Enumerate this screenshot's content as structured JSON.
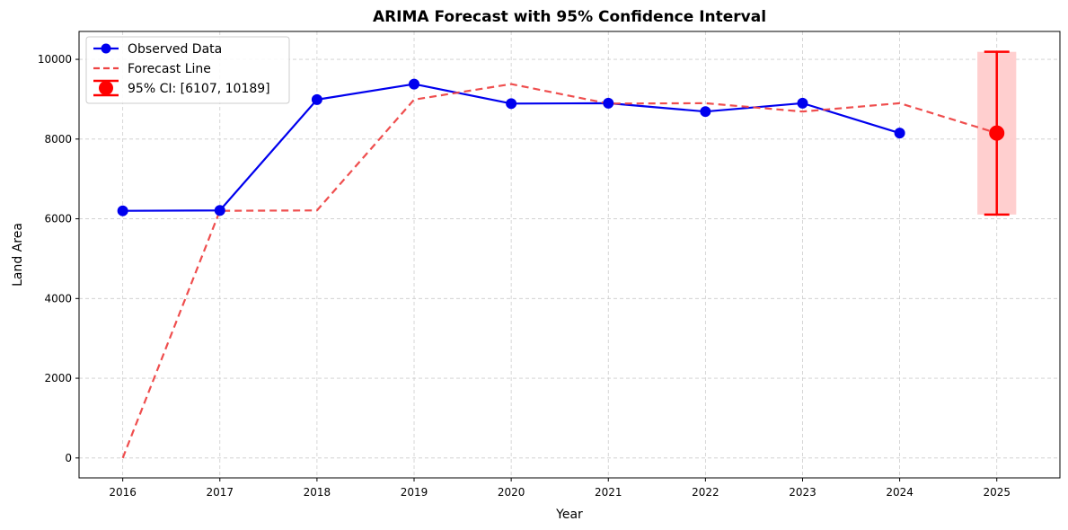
{
  "chart_data": {
    "type": "line",
    "title": "ARIMA Forecast with 95% Confidence Interval",
    "xlabel": "Year",
    "ylabel": "Land Area",
    "xlim": [
      2015.55,
      2025.65
    ],
    "ylim": [
      -500,
      10700
    ],
    "xticks": [
      "2016",
      "2017",
      "2018",
      "2019",
      "2020",
      "2021",
      "2022",
      "2023",
      "2024",
      "2025"
    ],
    "yticks": [
      "0",
      "2000",
      "4000",
      "6000",
      "8000",
      "10000"
    ],
    "grid": true,
    "legend_position": "top-left",
    "series": [
      {
        "name": "Observed Data",
        "style": "solid-marker",
        "color": "#0000ee",
        "x": [
          2016,
          2017,
          2018,
          2019,
          2020,
          2021,
          2022,
          2023,
          2024
        ],
        "y": [
          6200,
          6210,
          8990,
          9380,
          8890,
          8900,
          8690,
          8900,
          8150
        ]
      },
      {
        "name": "Forecast Line",
        "style": "dashed",
        "color": "#ee4444",
        "x": [
          2016,
          2017,
          2018,
          2019,
          2020,
          2021,
          2022,
          2023,
          2024,
          2025
        ],
        "y": [
          0,
          6200,
          6210,
          8990,
          9380,
          8890,
          8900,
          8690,
          8900,
          8150
        ]
      }
    ],
    "forecast": {
      "name": "95% CI: [6107, 10189]",
      "color": "#ff0000",
      "band_color": "#ffcccc",
      "x": 2025,
      "y": 8150,
      "lower": 6107,
      "upper": 10189
    }
  }
}
